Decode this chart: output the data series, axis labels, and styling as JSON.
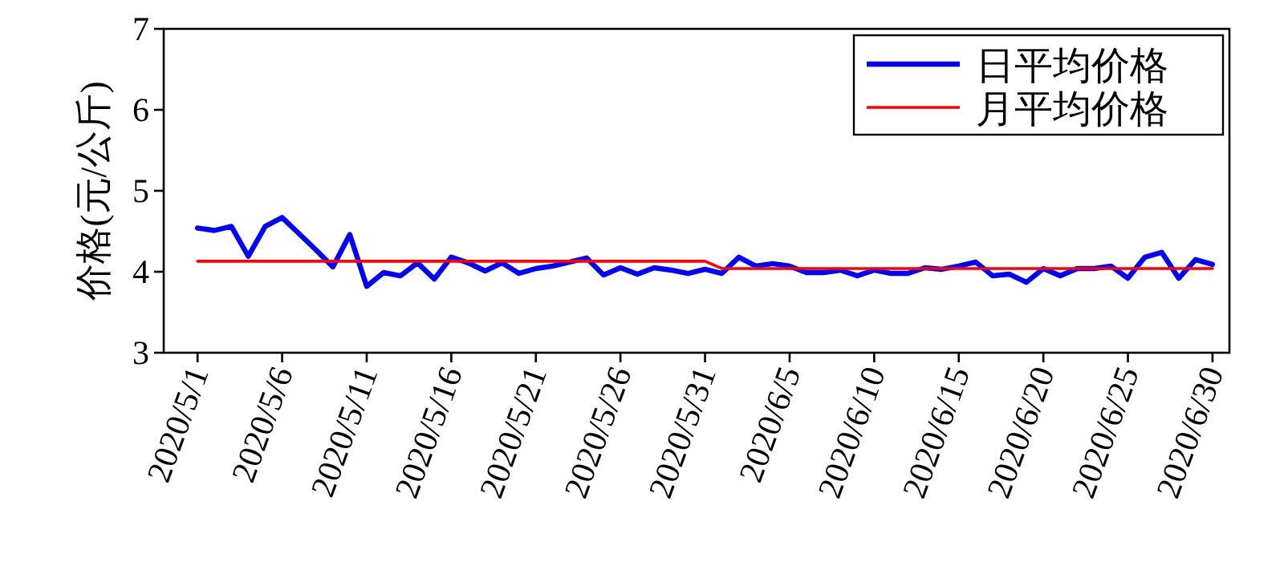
{
  "chart_data": {
    "type": "line",
    "ylabel": "价格(元/公斤)",
    "x": [
      "2020-05-01",
      "2020-05-02",
      "2020-05-03",
      "2020-05-04",
      "2020-05-05",
      "2020-05-06",
      "2020-05-07",
      "2020-05-08",
      "2020-05-09",
      "2020-05-10",
      "2020-05-11",
      "2020-05-12",
      "2020-05-13",
      "2020-05-14",
      "2020-05-15",
      "2020-05-16",
      "2020-05-17",
      "2020-05-18",
      "2020-05-19",
      "2020-05-20",
      "2020-05-21",
      "2020-05-22",
      "2020-05-23",
      "2020-05-24",
      "2020-05-25",
      "2020-05-26",
      "2020-05-27",
      "2020-05-28",
      "2020-05-29",
      "2020-05-30",
      "2020-05-31",
      "2020-06-01",
      "2020-06-02",
      "2020-06-03",
      "2020-06-04",
      "2020-06-05",
      "2020-06-06",
      "2020-06-07",
      "2020-06-08",
      "2020-06-09",
      "2020-06-10",
      "2020-06-11",
      "2020-06-12",
      "2020-06-13",
      "2020-06-14",
      "2020-06-15",
      "2020-06-16",
      "2020-06-17",
      "2020-06-18",
      "2020-06-19",
      "2020-06-20",
      "2020-06-21",
      "2020-06-22",
      "2020-06-23",
      "2020-06-24",
      "2020-06-25",
      "2020-06-26",
      "2020-06-27",
      "2020-06-28",
      "2020-06-29",
      "2020-06-30"
    ],
    "series": [
      {
        "name": "日平均价格",
        "color": "#0000ff",
        "values": [
          4.54,
          4.51,
          4.56,
          4.19,
          4.56,
          4.67,
          4.47,
          4.27,
          4.06,
          4.46,
          3.82,
          3.99,
          3.95,
          4.11,
          3.91,
          4.18,
          4.11,
          4.01,
          4.11,
          3.98,
          4.04,
          4.07,
          4.12,
          4.17,
          3.96,
          4.05,
          3.97,
          4.05,
          4.02,
          3.98,
          4.03,
          3.98,
          4.18,
          4.07,
          4.1,
          4.07,
          3.99,
          3.99,
          4.02,
          3.95,
          4.02,
          3.98,
          3.98,
          4.05,
          4.03,
          4.07,
          4.12,
          3.95,
          3.97,
          3.87,
          4.04,
          3.95,
          4.04,
          4.04,
          4.07,
          3.92,
          4.18,
          4.24,
          3.92,
          4.15,
          4.09
        ]
      },
      {
        "name": "月平均价格",
        "color": "#ff0000",
        "x": [
          "2020-05-01",
          "2020-05-31",
          "2020-06-01",
          "2020-06-30"
        ],
        "values": [
          4.13,
          4.13,
          4.04,
          4.04
        ]
      }
    ],
    "xlim": [
      "2020-04-29",
      "2020-07-01"
    ],
    "xticks": [
      {
        "value": "2020-05-01",
        "label": "2020/5/1"
      },
      {
        "value": "2020-05-06",
        "label": "2020/5/6"
      },
      {
        "value": "2020-05-11",
        "label": "2020/5/11"
      },
      {
        "value": "2020-05-16",
        "label": "2020/5/16"
      },
      {
        "value": "2020-05-21",
        "label": "2020/5/21"
      },
      {
        "value": "2020-05-26",
        "label": "2020/5/26"
      },
      {
        "value": "2020-05-31",
        "label": "2020/5/31"
      },
      {
        "value": "2020-06-05",
        "label": "2020/6/5"
      },
      {
        "value": "2020-06-10",
        "label": "2020/6/10"
      },
      {
        "value": "2020-06-15",
        "label": "2020/6/15"
      },
      {
        "value": "2020-06-20",
        "label": "2020/6/20"
      },
      {
        "value": "2020-06-25",
        "label": "2020/6/25"
      },
      {
        "value": "2020-06-30",
        "label": "2020/6/30"
      }
    ],
    "ylim": [
      3,
      7
    ],
    "yticks": [
      3,
      4,
      5,
      6,
      7
    ],
    "grid": false,
    "legend": "top right",
    "marker": "none",
    "line_style": "solid"
  }
}
